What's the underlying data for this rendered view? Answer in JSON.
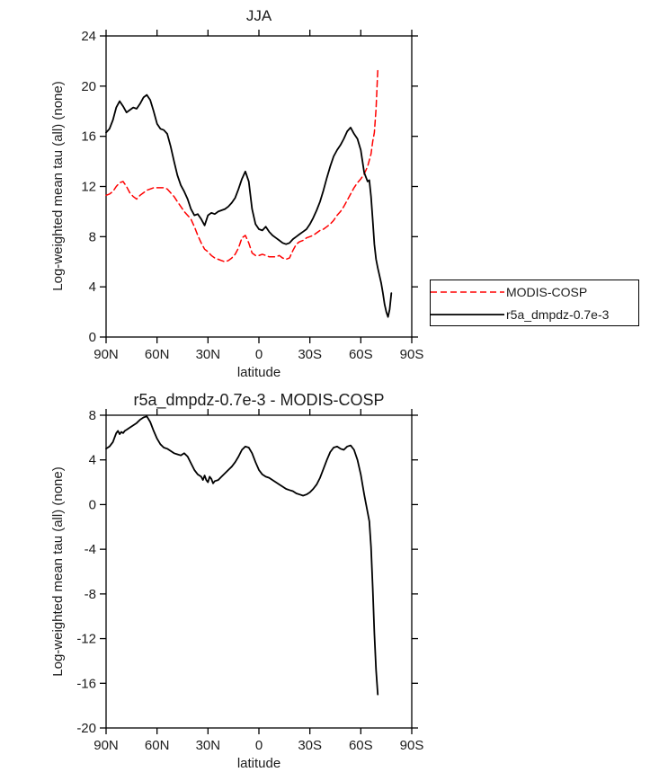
{
  "legend": {
    "entries": [
      {
        "label": "MODIS-COSP",
        "color": "#ff0000",
        "style": "dashed"
      },
      {
        "label": "r5a_dmpdz-0.7e-3",
        "color": "#000000",
        "style": "solid"
      }
    ]
  },
  "chart_data": [
    {
      "id": "top",
      "type": "line",
      "title": "JJA",
      "xlabel": "latitude",
      "ylabel": "Log-weighted mean tau (all) (none)",
      "xlim": [
        90,
        -90
      ],
      "ylim": [
        0,
        24
      ],
      "grid": false,
      "legend_position": "outside-right",
      "x_ticks": [
        {
          "v": 90,
          "label": "90N"
        },
        {
          "v": 60,
          "label": "60N"
        },
        {
          "v": 30,
          "label": "30N"
        },
        {
          "v": 0,
          "label": "0"
        },
        {
          "v": -30,
          "label": "30S"
        },
        {
          "v": -60,
          "label": "60S"
        },
        {
          "v": -90,
          "label": "90S"
        }
      ],
      "y_ticks": [
        {
          "v": 0,
          "label": "0"
        },
        {
          "v": 4,
          "label": "4"
        },
        {
          "v": 8,
          "label": "8"
        },
        {
          "v": 12,
          "label": "12"
        },
        {
          "v": 16,
          "label": "16"
        },
        {
          "v": 20,
          "label": "20"
        },
        {
          "v": 24,
          "label": "24"
        }
      ],
      "series": [
        {
          "name": "MODIS-COSP",
          "color": "#ff0000",
          "style": "dashed",
          "lat": [
            90,
            88,
            86,
            84,
            82,
            80,
            78,
            76,
            74,
            72,
            70,
            68,
            66,
            64,
            62,
            60,
            58,
            56,
            54,
            52,
            50,
            48,
            46,
            44,
            42,
            40,
            38,
            36,
            34,
            32,
            30,
            28,
            26,
            24,
            22,
            20,
            18,
            16,
            14,
            12,
            10,
            8,
            6,
            4,
            2,
            0,
            -2,
            -4,
            -6,
            -8,
            -10,
            -12,
            -14,
            -16,
            -18,
            -20,
            -22,
            -24,
            -26,
            -28,
            -30,
            -32,
            -34,
            -36,
            -38,
            -40,
            -42,
            -44,
            -46,
            -48,
            -50,
            -52,
            -54,
            -56,
            -58,
            -60,
            -62,
            -64,
            -66,
            -67,
            -68,
            -69,
            -70
          ],
          "values": [
            11.3,
            11.4,
            11.6,
            12.0,
            12.3,
            12.4,
            12.0,
            11.5,
            11.2,
            11.0,
            11.3,
            11.5,
            11.7,
            11.8,
            11.9,
            11.9,
            11.9,
            11.9,
            11.8,
            11.5,
            11.2,
            10.8,
            10.4,
            10.0,
            9.7,
            9.4,
            8.8,
            8.1,
            7.5,
            7.0,
            6.8,
            6.5,
            6.3,
            6.2,
            6.1,
            6.0,
            6.1,
            6.3,
            6.6,
            7.1,
            7.9,
            8.1,
            7.5,
            6.7,
            6.5,
            6.5,
            6.6,
            6.5,
            6.4,
            6.4,
            6.4,
            6.5,
            6.3,
            6.2,
            6.3,
            6.9,
            7.4,
            7.6,
            7.7,
            7.9,
            8.0,
            8.1,
            8.3,
            8.5,
            8.6,
            8.8,
            9.0,
            9.3,
            9.7,
            10.0,
            10.4,
            10.9,
            11.4,
            11.9,
            12.3,
            12.6,
            13.0,
            13.6,
            14.6,
            15.6,
            16.3,
            18.2,
            21.3
          ]
        },
        {
          "name": "r5a_dmpdz-0.7e-3",
          "color": "#000000",
          "style": "solid",
          "lat": [
            90,
            88,
            86,
            84,
            82,
            80,
            78,
            76,
            74,
            72,
            70,
            68,
            66,
            64,
            62,
            60,
            58,
            56,
            54,
            52,
            50,
            48,
            46,
            44,
            42,
            40,
            38,
            36,
            34,
            32,
            30,
            28,
            26,
            24,
            22,
            20,
            18,
            16,
            14,
            12,
            10,
            8,
            6,
            4,
            2,
            0,
            -2,
            -4,
            -6,
            -8,
            -10,
            -12,
            -14,
            -16,
            -18,
            -20,
            -22,
            -24,
            -26,
            -28,
            -30,
            -32,
            -34,
            -36,
            -38,
            -40,
            -42,
            -44,
            -46,
            -48,
            -50,
            -52,
            -54,
            -56,
            -58,
            -60,
            -62,
            -64,
            -65,
            -66,
            -67,
            -68,
            -69,
            -70,
            -71,
            -72,
            -73,
            -74,
            -75,
            -76,
            -77,
            -78
          ],
          "values": [
            16.3,
            16.6,
            17.3,
            18.3,
            18.8,
            18.4,
            17.9,
            18.1,
            18.3,
            18.2,
            18.6,
            19.1,
            19.3,
            18.9,
            18.0,
            17.0,
            16.6,
            16.5,
            16.2,
            15.2,
            14.0,
            12.9,
            12.1,
            11.6,
            11.0,
            10.2,
            9.7,
            9.8,
            9.4,
            8.9,
            9.7,
            9.9,
            9.8,
            10.0,
            10.1,
            10.2,
            10.4,
            10.7,
            11.1,
            11.8,
            12.6,
            13.2,
            12.4,
            10.2,
            9.0,
            8.6,
            8.5,
            8.8,
            8.4,
            8.1,
            7.9,
            7.7,
            7.5,
            7.4,
            7.5,
            7.8,
            8.0,
            8.2,
            8.4,
            8.6,
            9.0,
            9.5,
            10.1,
            10.8,
            11.7,
            12.7,
            13.6,
            14.4,
            14.9,
            15.3,
            15.8,
            16.4,
            16.7,
            16.2,
            15.8,
            14.9,
            13.1,
            12.4,
            12.5,
            11.2,
            9.3,
            7.4,
            6.2,
            5.5,
            4.9,
            4.3,
            3.5,
            2.6,
            2.0,
            1.6,
            2.2,
            3.5
          ]
        }
      ]
    },
    {
      "id": "diff",
      "type": "line",
      "title": "r5a_dmpdz-0.7e-3 - MODIS-COSP",
      "xlabel": "latitude",
      "ylabel": "Log-weighted mean tau (all) (none)",
      "xlim": [
        90,
        -90
      ],
      "ylim": [
        -20,
        8
      ],
      "grid": false,
      "x_ticks": [
        {
          "v": 90,
          "label": "90N"
        },
        {
          "v": 60,
          "label": "60N"
        },
        {
          "v": 30,
          "label": "30N"
        },
        {
          "v": 0,
          "label": "0"
        },
        {
          "v": -30,
          "label": "30S"
        },
        {
          "v": -60,
          "label": "60S"
        },
        {
          "v": -90,
          "label": "90S"
        }
      ],
      "y_ticks": [
        {
          "v": -20,
          "label": "-20"
        },
        {
          "v": -16,
          "label": "-16"
        },
        {
          "v": -12,
          "label": "-12"
        },
        {
          "v": -8,
          "label": "-8"
        },
        {
          "v": -4,
          "label": "-4"
        },
        {
          "v": 0,
          "label": "0"
        },
        {
          "v": 4,
          "label": "4"
        },
        {
          "v": 8,
          "label": "8"
        }
      ],
      "series": [
        {
          "name": "r5a_dmpdz-0.7e-3 minus MODIS-COSP",
          "color": "#000000",
          "style": "solid",
          "lat": [
            90,
            88,
            86,
            85,
            84,
            83,
            82,
            81,
            80,
            79,
            78,
            76,
            74,
            72,
            70,
            68,
            66,
            64,
            62,
            60,
            58,
            56,
            54,
            52,
            50,
            48,
            46,
            44,
            42,
            40,
            38,
            36,
            34,
            33,
            32,
            31,
            30,
            29,
            28,
            27,
            26,
            24,
            22,
            20,
            18,
            16,
            14,
            12,
            10,
            8,
            6,
            4,
            2,
            0,
            -2,
            -4,
            -6,
            -8,
            -10,
            -12,
            -14,
            -16,
            -18,
            -20,
            -22,
            -24,
            -26,
            -28,
            -30,
            -32,
            -34,
            -36,
            -38,
            -40,
            -42,
            -44,
            -46,
            -48,
            -50,
            -52,
            -54,
            -56,
            -58,
            -60,
            -61,
            -62,
            -63,
            -64,
            -65,
            -66,
            -67,
            -68,
            -69,
            -70
          ],
          "values": [
            5.0,
            5.2,
            5.6,
            6.0,
            6.4,
            6.6,
            6.3,
            6.5,
            6.4,
            6.6,
            6.7,
            6.9,
            7.1,
            7.3,
            7.6,
            7.8,
            7.9,
            7.4,
            6.6,
            5.9,
            5.4,
            5.1,
            5.0,
            4.8,
            4.6,
            4.5,
            4.4,
            4.6,
            4.3,
            3.7,
            3.1,
            2.7,
            2.5,
            2.2,
            2.6,
            2.2,
            2.0,
            2.5,
            2.3,
            1.9,
            2.1,
            2.2,
            2.5,
            2.8,
            3.1,
            3.4,
            3.8,
            4.3,
            4.9,
            5.2,
            5.1,
            4.6,
            3.8,
            3.1,
            2.7,
            2.5,
            2.4,
            2.2,
            2.0,
            1.8,
            1.6,
            1.4,
            1.3,
            1.2,
            1.0,
            0.9,
            0.8,
            0.9,
            1.1,
            1.4,
            1.8,
            2.4,
            3.2,
            4.0,
            4.7,
            5.1,
            5.2,
            5.0,
            4.9,
            5.2,
            5.3,
            4.9,
            4.0,
            2.7,
            1.8,
            0.9,
            0.1,
            -0.7,
            -1.5,
            -3.8,
            -7.5,
            -11.5,
            -14.8,
            -17.0
          ]
        }
      ]
    }
  ]
}
